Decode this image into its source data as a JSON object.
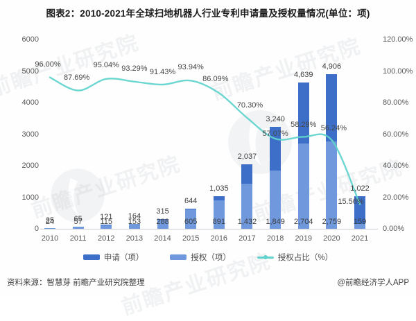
{
  "title": "图表2：2010-2021年全球扫地机器人行业专利申请量及授权量情况(单位：项)",
  "chart_data": {
    "type": "bar",
    "subtype": "combo bar + smooth line, dual y-axis",
    "categories": [
      "2010",
      "2011",
      "2012",
      "2013",
      "2014",
      "2015",
      "2016",
      "2017",
      "2018",
      "2019",
      "2020",
      "2021"
    ],
    "series": [
      {
        "name": "申请（项）",
        "type": "bar",
        "axis": "left",
        "color": "#3d6fc8",
        "values": [
          25,
          65,
          121,
          164,
          315,
          644,
          1035,
          2037,
          3240,
          4639,
          4906,
          1022
        ],
        "labels": [
          "25",
          "65",
          "121",
          "164",
          "315",
          "644",
          "1,035",
          "2,037",
          "3,240",
          "4,639",
          "4,906",
          "1,022"
        ]
      },
      {
        "name": "授权（项）",
        "type": "bar",
        "axis": "left",
        "color": "#7099dd",
        "values": [
          24,
          57,
          115,
          153,
          288,
          605,
          891,
          1432,
          1849,
          2704,
          2759,
          159
        ],
        "labels": [
          "24",
          "57",
          "115",
          "153",
          "288",
          "605",
          "891",
          "1,432",
          "1,849",
          "2,704",
          "2,759",
          "159"
        ]
      },
      {
        "name": "授权占比（%）",
        "type": "line",
        "axis": "right",
        "color": "#5fd2cc",
        "values": [
          96.0,
          87.69,
          95.04,
          93.29,
          91.43,
          93.94,
          86.09,
          70.3,
          57.07,
          58.29,
          56.24,
          15.56
        ],
        "labels": [
          "96.00%",
          "87.69%",
          "95.04%",
          "93.29%",
          "91.43%",
          "93.94%",
          "86.09%",
          "70.30%",
          "57.07%",
          "58.29%",
          "56.24%",
          "15.56%"
        ]
      }
    ],
    "left_axis": {
      "min": 0,
      "max": 6000,
      "step": 1000,
      "tick_labels": [
        "6000",
        "5000",
        "4000",
        "3000",
        "2000",
        "1000",
        "0"
      ]
    },
    "right_axis": {
      "min": 0,
      "max": 120,
      "step": 20,
      "tick_labels": [
        "120.00%",
        "100.00%",
        "80.00%",
        "60.00%",
        "40.00%",
        "20.00%",
        "0.00%"
      ]
    },
    "grid": false,
    "legend_position": "bottom",
    "xlabel": "",
    "ylabel": ""
  },
  "legend": {
    "items": [
      {
        "label": "申请（项）",
        "color": "#3d6fc8",
        "shape": "bar"
      },
      {
        "label": "授权（项）",
        "color": "#7099dd",
        "shape": "bar"
      },
      {
        "label": "授权占比（%）",
        "color": "#5fd2cc",
        "shape": "line"
      }
    ]
  },
  "footer": {
    "source": "资料来源：智慧芽 前瞻产业研究院整理",
    "credit": "@前瞻经济学人APP"
  },
  "watermark": {
    "text": "前瞻产业研究院"
  }
}
